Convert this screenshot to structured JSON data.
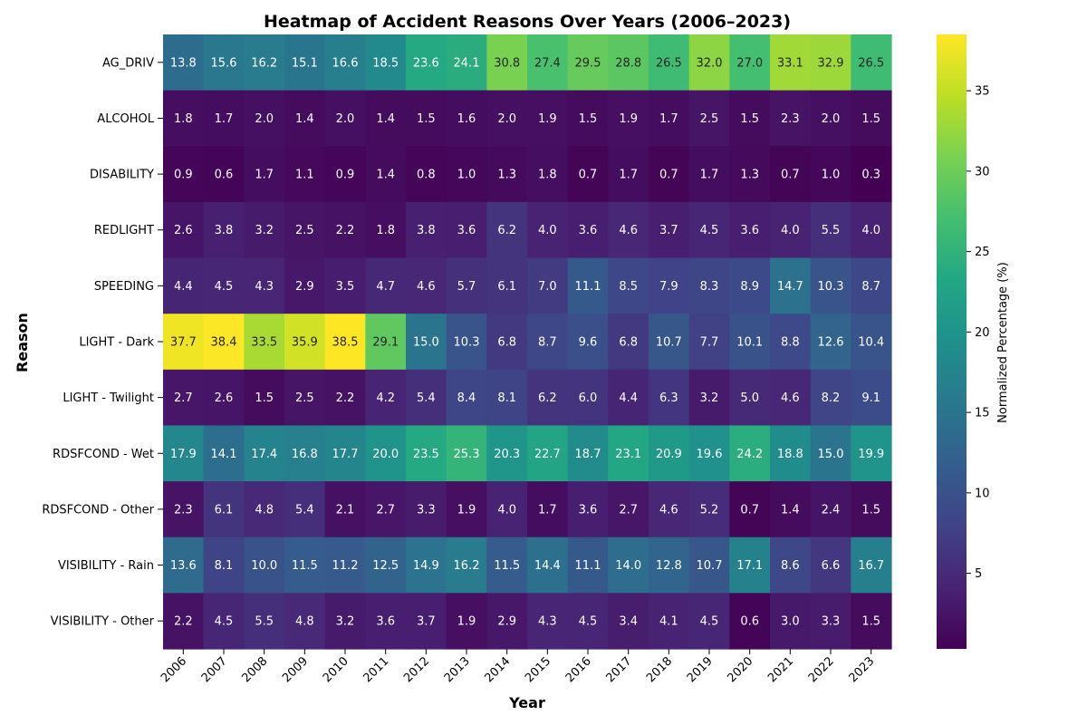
{
  "chart_data": {
    "type": "heatmap",
    "title": "Heatmap of Accident Reasons Over Years (2006–2023)",
    "xlabel": "Year",
    "ylabel": "Reason",
    "colorbar_label": "Normalized Percentage (%)",
    "colormap": "viridis",
    "color_range": [
      0.3,
      38.5
    ],
    "colorbar_ticks": [
      5,
      10,
      15,
      20,
      25,
      30,
      35
    ],
    "x": [
      "2006",
      "2007",
      "2008",
      "2009",
      "2010",
      "2011",
      "2012",
      "2013",
      "2014",
      "2015",
      "2016",
      "2017",
      "2018",
      "2019",
      "2020",
      "2021",
      "2022",
      "2023"
    ],
    "y": [
      "AG_DRIV",
      "ALCOHOL",
      "DISABILITY",
      "REDLIGHT",
      "SPEEDING",
      "LIGHT - Dark",
      "LIGHT - Twilight",
      "RDSFCOND - Wet",
      "RDSFCOND - Other",
      "VISIBILITY - Rain",
      "VISIBILITY - Other"
    ],
    "values": [
      [
        13.8,
        15.6,
        16.2,
        15.1,
        16.6,
        18.5,
        23.6,
        24.1,
        30.8,
        27.4,
        29.5,
        28.8,
        26.5,
        32.0,
        27.0,
        33.1,
        32.9,
        26.5
      ],
      [
        1.8,
        1.7,
        2.0,
        1.4,
        2.0,
        1.4,
        1.5,
        1.6,
        2.0,
        1.9,
        1.5,
        1.9,
        1.7,
        2.5,
        1.5,
        2.3,
        2.0,
        1.5
      ],
      [
        0.9,
        0.6,
        1.7,
        1.1,
        0.9,
        1.4,
        0.8,
        1.0,
        1.3,
        1.8,
        0.7,
        1.7,
        0.7,
        1.7,
        1.3,
        0.7,
        1.0,
        0.3
      ],
      [
        2.6,
        3.8,
        3.2,
        2.5,
        2.2,
        1.8,
        3.8,
        3.6,
        6.2,
        4.0,
        3.6,
        4.6,
        3.7,
        4.5,
        3.6,
        4.0,
        5.5,
        4.0
      ],
      [
        4.4,
        4.5,
        4.3,
        2.9,
        3.5,
        4.7,
        4.6,
        5.7,
        6.1,
        7.0,
        11.1,
        8.5,
        7.9,
        8.3,
        8.9,
        14.7,
        10.3,
        8.7
      ],
      [
        37.7,
        38.4,
        33.5,
        35.9,
        38.5,
        29.1,
        15.0,
        10.3,
        6.8,
        8.7,
        9.6,
        6.8,
        10.7,
        7.7,
        10.1,
        8.8,
        12.6,
        10.4
      ],
      [
        2.7,
        2.6,
        1.5,
        2.5,
        2.2,
        4.2,
        5.4,
        8.4,
        8.1,
        6.2,
        6.0,
        4.4,
        6.3,
        3.2,
        5.0,
        4.6,
        8.2,
        9.1
      ],
      [
        17.9,
        14.1,
        17.4,
        16.8,
        17.7,
        20.0,
        23.5,
        25.3,
        20.3,
        22.7,
        18.7,
        23.1,
        20.9,
        19.6,
        24.2,
        18.8,
        15.0,
        19.9
      ],
      [
        2.3,
        6.1,
        4.8,
        5.4,
        2.1,
        2.7,
        3.3,
        1.9,
        4.0,
        1.7,
        3.6,
        2.7,
        4.6,
        5.2,
        0.7,
        1.4,
        2.4,
        1.5
      ],
      [
        13.6,
        8.1,
        10.0,
        11.5,
        11.2,
        12.5,
        14.9,
        16.2,
        11.5,
        14.4,
        11.1,
        14.0,
        12.8,
        10.7,
        17.1,
        8.6,
        6.6,
        16.7
      ],
      [
        2.2,
        4.5,
        5.5,
        4.8,
        3.2,
        3.6,
        3.7,
        1.9,
        2.9,
        4.3,
        4.5,
        3.4,
        4.1,
        4.5,
        0.6,
        3.0,
        3.3,
        1.5
      ]
    ],
    "annotated": true,
    "grid": false,
    "legend": "colorbar-right"
  }
}
